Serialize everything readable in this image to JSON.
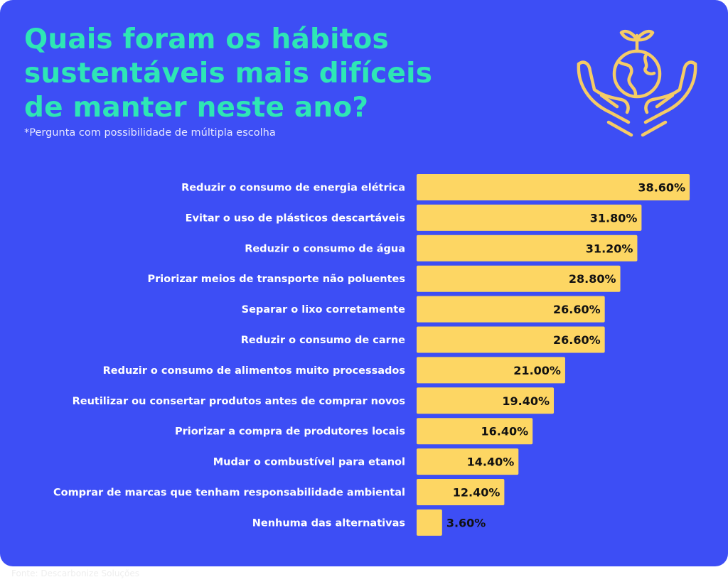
{
  "header": {
    "title_lines": [
      "Quais foram os hábitos",
      "sustentáveis mais difíceis",
      "de manter neste ano?"
    ],
    "subtitle": "*Pergunta com possibilidade de múltipla escolha",
    "icon": "hands-holding-globe-with-sprout-icon"
  },
  "footer": {
    "source": "Fonte: Descarbonize Soluções"
  },
  "colors": {
    "background": "#3d4ef5",
    "title": "#2ee6b5",
    "bar": "#fdd663",
    "label": "#ffffff",
    "icon": "#f5cc66"
  },
  "chart_data": {
    "type": "bar",
    "orientation": "horizontal",
    "categories": [
      "Reduzir o consumo de energia elétrica",
      "Evitar o uso de plásticos descartáveis",
      "Reduzir o consumo de água",
      "Priorizar meios de transporte não poluentes",
      "Separar o lixo corretamente",
      "Reduzir o consumo de carne",
      "Reduzir o consumo de alimentos muito processados",
      "Reutilizar ou consertar produtos antes de comprar novos",
      "Priorizar a compra de produtores locais",
      "Mudar o combustível para etanol",
      "Comprar de marcas que tenham responsabilidade ambiental",
      "Nenhuma das alternativas"
    ],
    "values": [
      38.6,
      31.8,
      31.2,
      28.8,
      26.6,
      26.6,
      21.0,
      19.4,
      16.4,
      14.4,
      12.4,
      3.6
    ],
    "data_labels": [
      "38.60%",
      "31.80%",
      "31.20%",
      "28.80%",
      "26.60%",
      "26.60%",
      "21.00%",
      "19.40%",
      "16.40%",
      "14.40%",
      "12.40%",
      "3.60%"
    ],
    "unit": "%",
    "legend": "none",
    "grid": false
  }
}
